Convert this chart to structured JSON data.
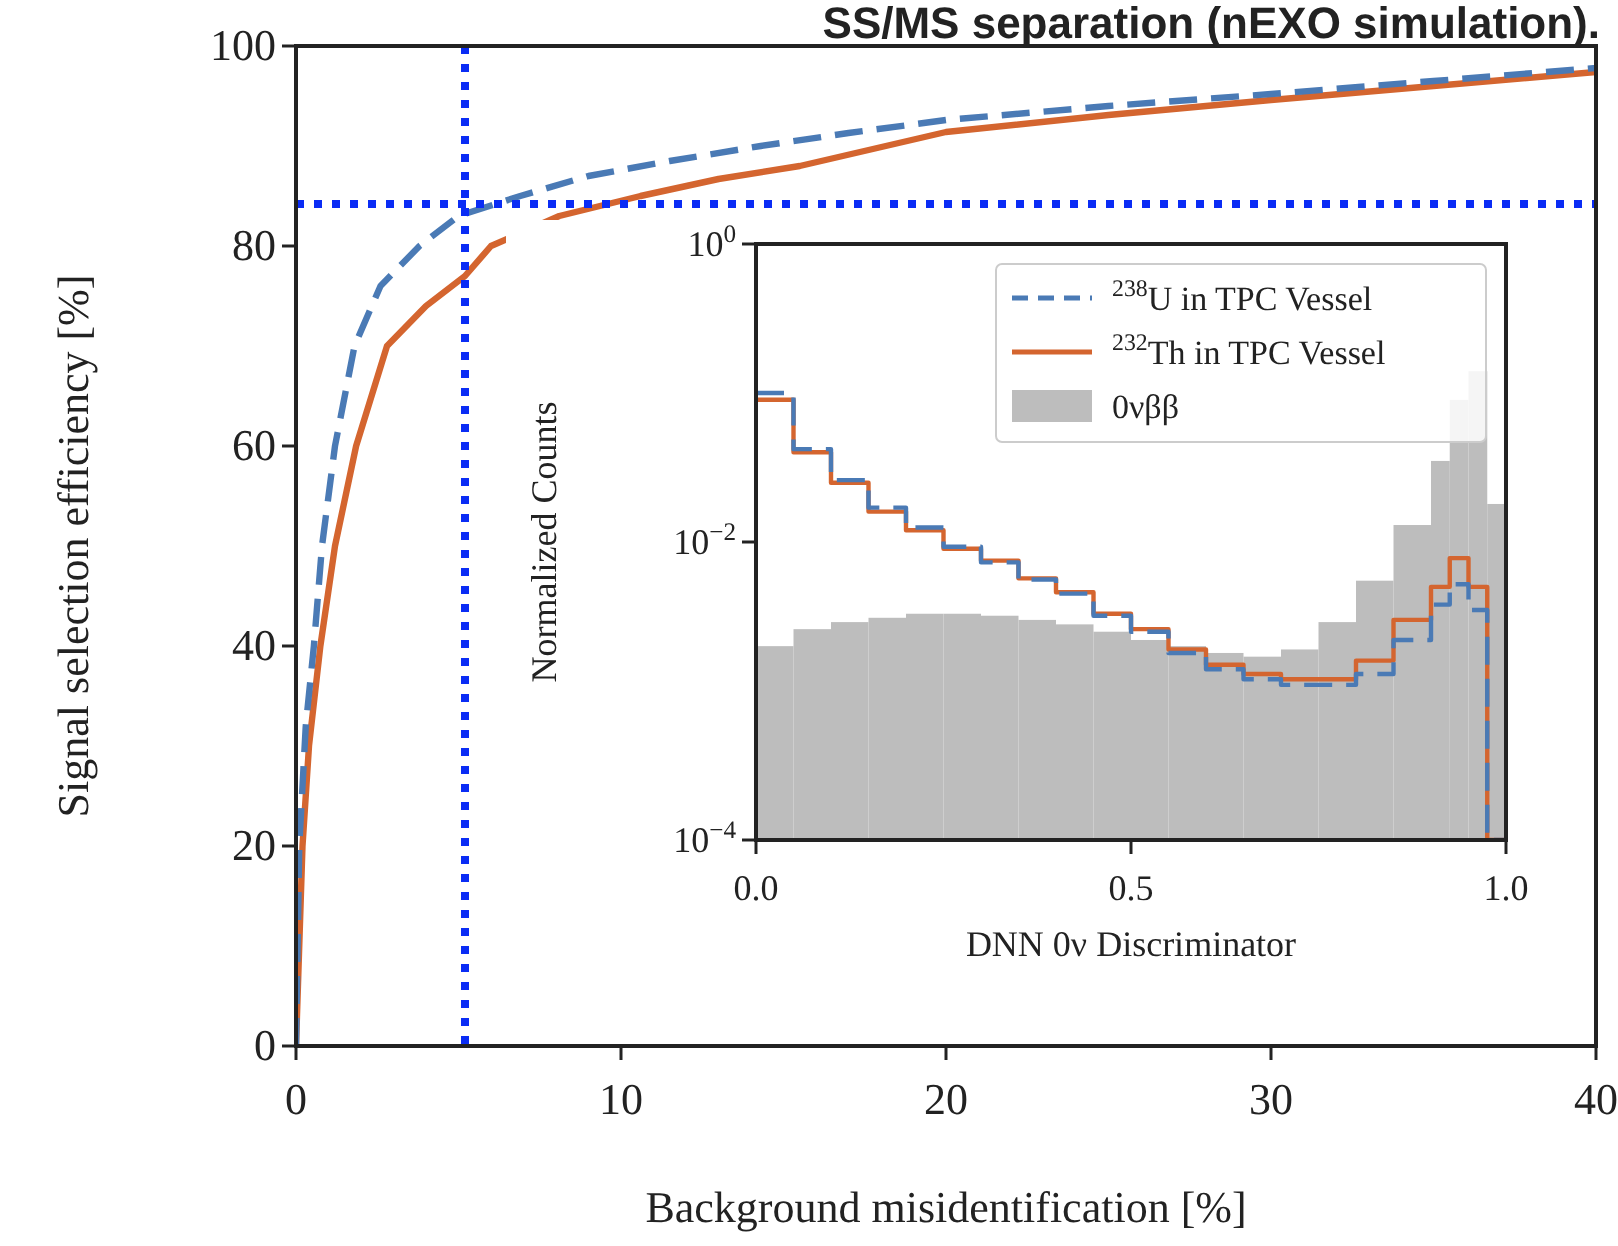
{
  "chart_data": [
    {
      "type": "line",
      "title": "SS/MS separation (nEXO simulation).",
      "xlabel": "Background misidentification [%]",
      "ylabel": "Signal selection efficiency [%]",
      "xlim": [
        0,
        40
      ],
      "xticks": [
        0,
        10,
        20,
        30,
        40
      ],
      "ylim": [
        0,
        100
      ],
      "yticks": [
        0,
        20,
        40,
        60,
        80,
        100
      ],
      "series": [
        {
          "color": "#4a7ab5",
          "line_style": "dashed",
          "x": [
            0,
            0.1,
            0.3,
            0.55,
            0.8,
            1.2,
            1.8,
            2.6,
            3.8,
            5,
            6.9,
            9,
            11.5,
            14.3,
            17,
            20,
            25,
            30,
            35,
            40
          ],
          "values": [
            0,
            20,
            32,
            40,
            50,
            60,
            70,
            76,
            80,
            83,
            85,
            87,
            88.5,
            90,
            91.3,
            92.6,
            94,
            95.2,
            96.5,
            97.8
          ]
        },
        {
          "color": "#d4652f",
          "line_style": "solid",
          "x": [
            0,
            0.2,
            0.4,
            0.75,
            1.2,
            1.85,
            2.8,
            4,
            5.2,
            6,
            8.1,
            10.6,
            13,
            15.5,
            20,
            25,
            30,
            35,
            40
          ],
          "values": [
            0,
            20,
            30,
            40,
            50,
            60,
            70,
            74,
            77,
            80,
            83,
            85,
            86.7,
            88,
            91.4,
            93.1,
            94.6,
            96,
            97.4
          ]
        }
      ],
      "ref_lines": [
        {
          "axis": "x",
          "value": 5.2,
          "color": "#0a2cf5",
          "line_style": "dotted"
        },
        {
          "axis": "y",
          "value": 84.2,
          "color": "#0a2cf5",
          "line_style": "dotted"
        }
      ]
    },
    {
      "type": "histogram",
      "xlabel": "DNN 0ν Discriminator",
      "ylabel": "Normalized Counts",
      "log": "y",
      "legend": "top right",
      "xlim": [
        0,
        1
      ],
      "xticks": [
        {
          "value": 0,
          "label": "0.0"
        },
        {
          "value": 0.5,
          "label": "0.5"
        },
        {
          "value": 1,
          "label": "1.0"
        }
      ],
      "ylim": [
        0.0001,
        1
      ],
      "yticks": [
        {
          "value": 0.0001,
          "label": "10$^{−4}$"
        },
        {
          "value": 0.01,
          "label": "10$^{−2}$"
        },
        {
          "value": 1,
          "label": "10$^{0}$"
        }
      ],
      "bins": [
        0,
        0.05,
        0.1,
        0.15,
        0.2,
        0.25,
        0.3,
        0.35,
        0.4,
        0.45,
        0.5,
        0.55,
        0.6,
        0.65,
        0.7,
        0.75,
        0.8,
        0.85,
        0.9,
        0.925,
        0.95,
        0.975,
        1
      ],
      "series": [
        {
          "name": "$^{238}$U in TPC Vessel",
          "type": "step",
          "color": "#4a7ab5",
          "line_style": "dashed",
          "x": [
            0,
            0.05,
            0.1,
            0.15,
            0.2,
            0.25,
            0.3,
            0.35,
            0.4,
            0.45,
            0.5,
            0.55,
            0.6,
            0.65,
            0.7,
            0.75,
            0.8,
            0.85,
            0.9,
            0.925,
            0.95,
            0.975,
            1
          ],
          "values": [
            0.1,
            0.042,
            0.026,
            0.017,
            0.0125,
            0.0093,
            0.0073,
            0.0056,
            0.0045,
            0.0032,
            0.0025,
            0.0018,
            0.0014,
            0.0012,
            0.0011,
            0.0011,
            0.0013,
            0.0022,
            0.0038,
            0.0052,
            0.0035,
            0.0001,
            0.0001
          ]
        },
        {
          "name": "$^{232}$Th in TPC Vessel",
          "type": "step",
          "color": "#d4652f",
          "line_style": "solid",
          "x": [
            0,
            0.05,
            0.1,
            0.15,
            0.2,
            0.25,
            0.3,
            0.35,
            0.4,
            0.45,
            0.5,
            0.55,
            0.6,
            0.65,
            0.7,
            0.75,
            0.8,
            0.85,
            0.9,
            0.925,
            0.95,
            0.975,
            1
          ],
          "values": [
            0.09,
            0.04,
            0.025,
            0.016,
            0.012,
            0.009,
            0.0075,
            0.0057,
            0.0046,
            0.0033,
            0.0026,
            0.0019,
            0.0015,
            0.0013,
            0.0012,
            0.0012,
            0.0016,
            0.003,
            0.005,
            0.0078,
            0.005,
            0.0001,
            0.0001
          ]
        },
        {
          "name": "0νββ",
          "type": "histogram",
          "color": "#bdbdbd",
          "values": [
            0.002,
            0.0026,
            0.0029,
            0.0031,
            0.0033,
            0.0033,
            0.0032,
            0.003,
            0.0028,
            0.0025,
            0.0022,
            0.002,
            0.0018,
            0.0017,
            0.0019,
            0.0029,
            0.0055,
            0.013,
            0.035,
            0.09,
            0.14,
            0.018
          ]
        }
      ]
    }
  ]
}
